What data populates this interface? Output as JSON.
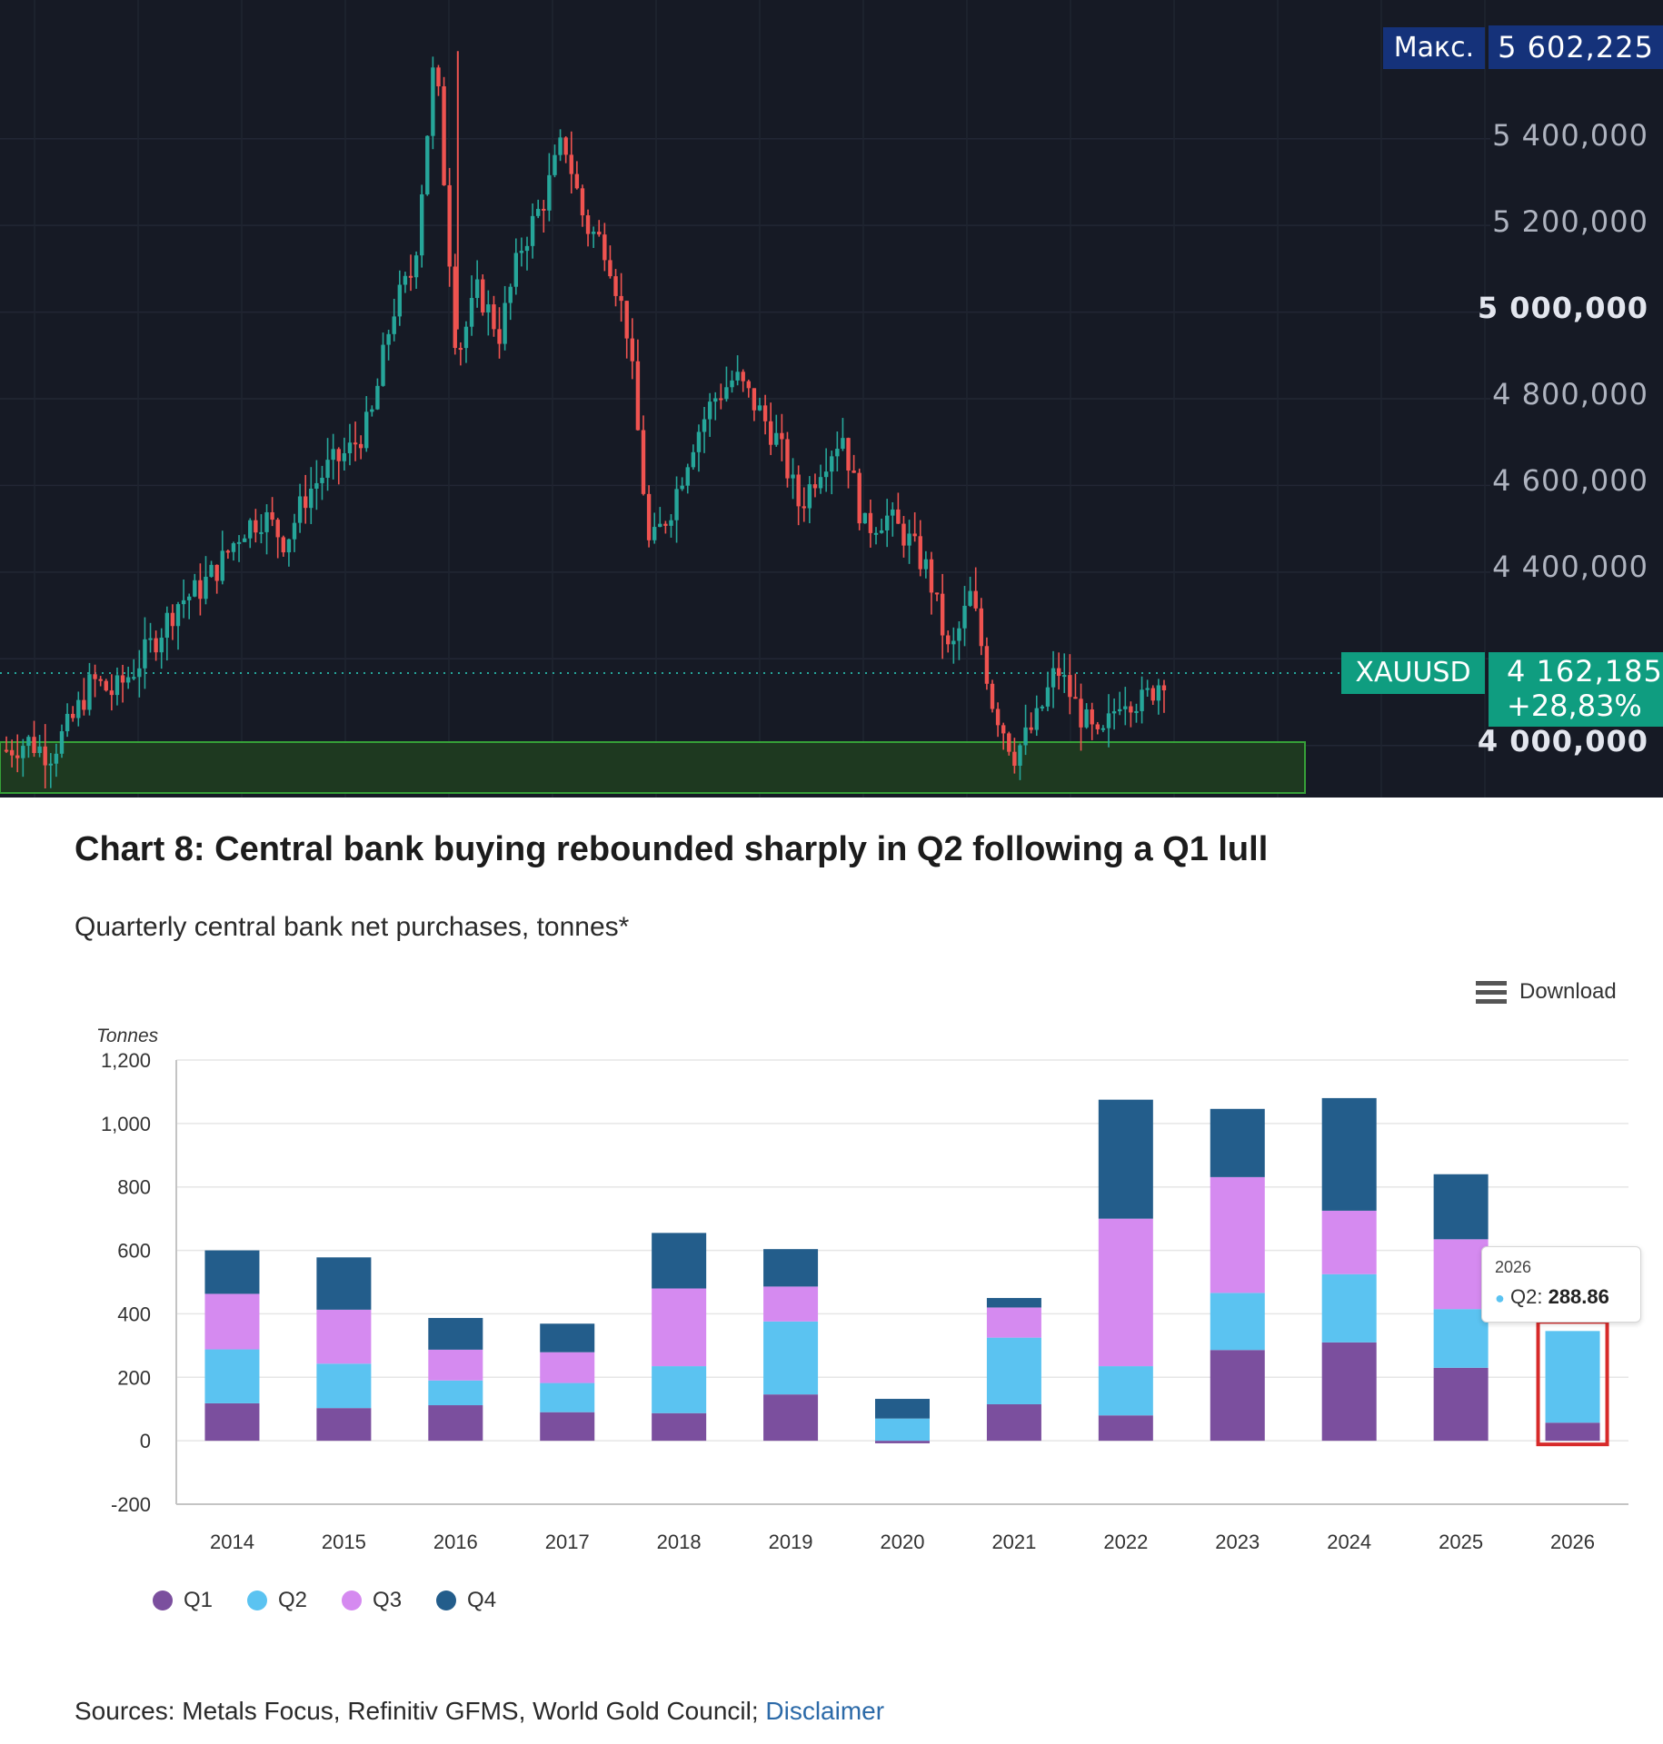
{
  "top_chart": {
    "max_label": "Макс.",
    "max_value": "5 602,225",
    "symbol": "XAUUSD",
    "price": "4 162,185",
    "change": "+28,83%",
    "price_ticks": [
      "5 400,000",
      "5 200,000",
      "5 000,000",
      "4 800,000",
      "4 600,000",
      "4 400,000",
      "4 000,000"
    ],
    "colors": {
      "background": "#161a25",
      "up": "#26a69a",
      "down": "#ef5350",
      "highlight_zone": "#1f3b20"
    }
  },
  "chart_data": [
    {
      "type": "candlestick",
      "series": [
        {
          "name": "XAUUSD",
          "close_path_approx": [
            3990,
            4010,
            3980,
            4050,
            4150,
            4120,
            4180,
            4250,
            4330,
            4360,
            4420,
            4500,
            4530,
            4470,
            4580,
            4640,
            4680,
            4750,
            5000,
            5100,
            5600,
            4900,
            5050,
            4950,
            5150,
            5250,
            5400,
            5200,
            5150,
            4950,
            4450,
            4550,
            4700,
            4800,
            4850,
            4780,
            4700,
            4550,
            4650,
            4720,
            4500,
            4530,
            4480,
            4400,
            4200,
            4350,
            4100,
            3980,
            4050,
            4180,
            4080,
            4000,
            4120,
            4100,
            4162
          ]
        }
      ],
      "ylim": [
        3880,
        5720
      ],
      "yticks": [
        4000,
        4200,
        4400,
        4600,
        4800,
        5000,
        5200,
        5400
      ],
      "annotations": {
        "max": 5602.225,
        "last": 4162.185,
        "change_pct": 28.83
      }
    },
    {
      "type": "bar",
      "stacked": true,
      "title": "Chart 8: Central bank buying rebounded sharply in Q2 following a Q1 lull",
      "subtitle": "Quarterly central bank net purchases, tonnes*",
      "ylabel": "Tonnes",
      "ylim": [
        -200,
        1200
      ],
      "yticks": [
        "1,200",
        "1,000",
        "800",
        "600",
        "400",
        "200",
        "0",
        "-200"
      ],
      "categories": [
        "2014",
        "2015",
        "2016",
        "2017",
        "2018",
        "2019",
        "2020",
        "2021",
        "2022",
        "2023",
        "2024",
        "2025",
        "2026"
      ],
      "series": [
        {
          "name": "Q1",
          "color": "#7b4f9e",
          "values": [
            118,
            103,
            112,
            90,
            87,
            146,
            -8,
            115,
            80,
            286,
            310,
            230,
            57
          ]
        },
        {
          "name": "Q2",
          "color": "#5bc3f1",
          "values": [
            170,
            140,
            78,
            92,
            148,
            230,
            70,
            210,
            155,
            180,
            215,
            185,
            288.86
          ]
        },
        {
          "name": "Q3",
          "color": "#d58af0",
          "values": [
            175,
            170,
            97,
            97,
            245,
            110,
            0,
            95,
            465,
            365,
            200,
            220,
            0
          ]
        },
        {
          "name": "Q4",
          "color": "#235d8b",
          "values": [
            137,
            165,
            100,
            90,
            175,
            118,
            62,
            30,
            375,
            215,
            355,
            205,
            0
          ]
        }
      ],
      "highlight": {
        "category": "2026",
        "color": "#d72a2a"
      },
      "tooltip": {
        "year": "2026",
        "label": "Q2: ",
        "value": "288.86"
      }
    }
  ],
  "bottom_chart": {
    "download_label": "Download",
    "sources_text": "Sources: Metals Focus, Refinitiv GFMS, World Gold Council; ",
    "disclaimer_label": "Disclaimer"
  }
}
